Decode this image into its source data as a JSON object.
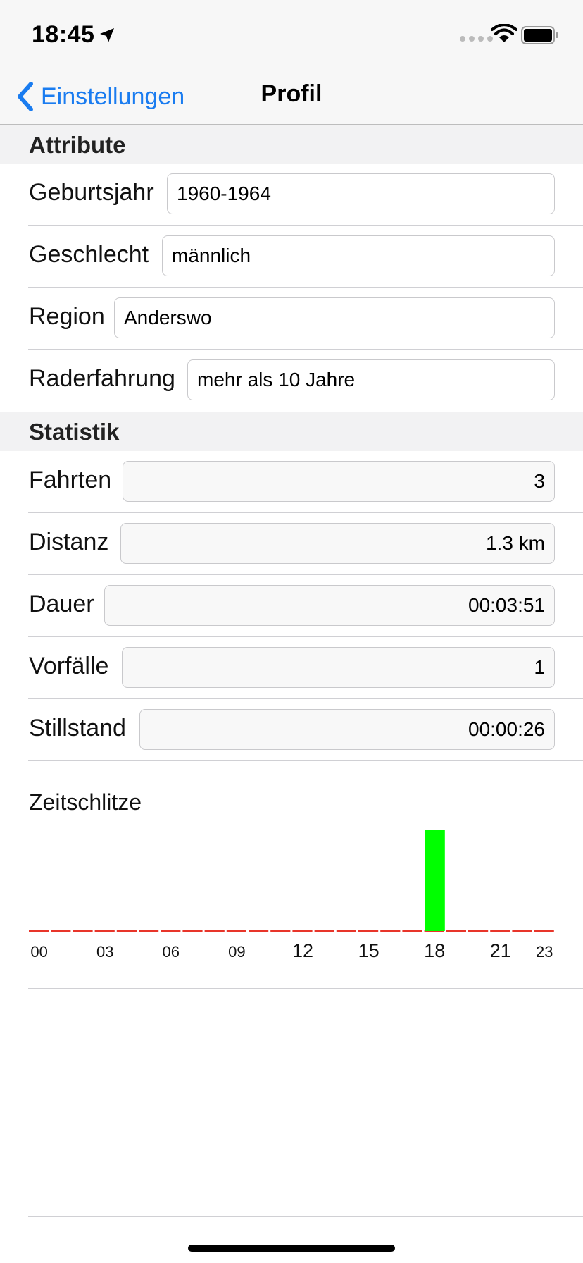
{
  "status_bar": {
    "time": "18:45"
  },
  "nav": {
    "back_label": "Einstellungen",
    "title": "Profil"
  },
  "attributes": {
    "header": "Attribute",
    "rows": [
      {
        "label": "Geburtsjahr",
        "value": "1960-1964"
      },
      {
        "label": "Geschlecht",
        "value": "männlich"
      },
      {
        "label": "Region",
        "value": "Anderswo"
      },
      {
        "label": "Raderfahrung",
        "value": "mehr als 10 Jahre"
      }
    ]
  },
  "statistics": {
    "header": "Statistik",
    "rows": [
      {
        "label": "Fahrten",
        "value": "3"
      },
      {
        "label": "Distanz",
        "value": "1.3 km"
      },
      {
        "label": "Dauer",
        "value": "00:03:51"
      },
      {
        "label": "Vorfälle",
        "value": "1"
      },
      {
        "label": "Stillstand",
        "value": "00:00:26"
      }
    ]
  },
  "chart_data": {
    "type": "bar",
    "title": "Zeitschlitze",
    "categories": [
      "00",
      "01",
      "02",
      "03",
      "04",
      "05",
      "06",
      "07",
      "08",
      "09",
      "10",
      "11",
      "12",
      "13",
      "14",
      "15",
      "16",
      "17",
      "18",
      "19",
      "20",
      "21",
      "22",
      "23"
    ],
    "values": [
      0,
      0,
      0,
      0,
      0,
      0,
      0,
      0,
      0,
      0,
      0,
      0,
      0,
      0,
      0,
      0,
      0,
      0,
      1,
      0,
      0,
      0,
      0,
      0
    ],
    "tick_labels": [
      "00",
      "03",
      "06",
      "09",
      "12",
      "15",
      "18",
      "21",
      "23"
    ],
    "bar_color": "#00ff00",
    "baseline_color": "#e8352a",
    "grid": false,
    "legend": "none"
  }
}
